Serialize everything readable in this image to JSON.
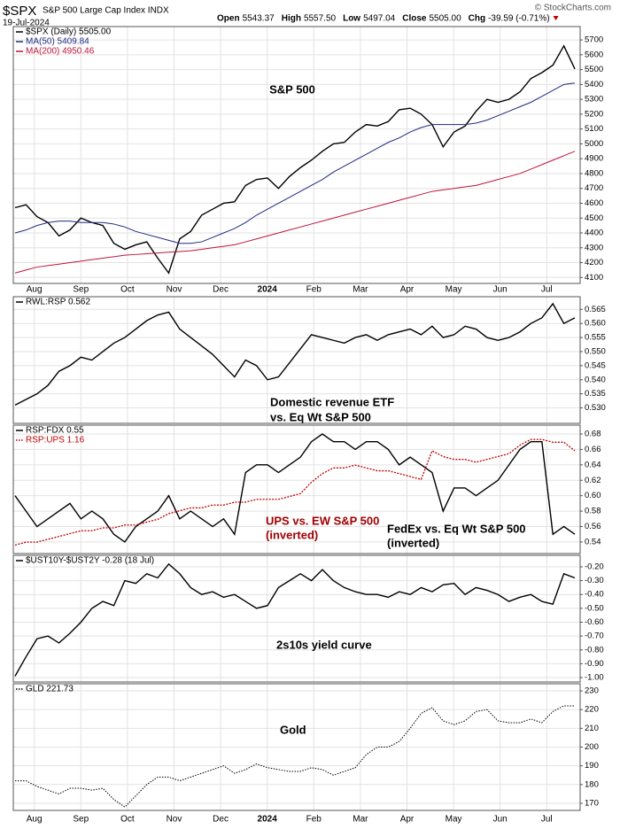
{
  "header": {
    "symbol": "$SPX",
    "name": "S&P 500 Large Cap Index INDX",
    "date": "19-Jul-2024",
    "stats": [
      {
        "label": "Open",
        "value": "5543.37"
      },
      {
        "label": "High",
        "value": "5557.50"
      },
      {
        "label": "Low",
        "value": "5497.04"
      },
      {
        "label": "Close",
        "value": "5505.00"
      },
      {
        "label": "Chg",
        "value": "-39.59 (-0.71%)"
      }
    ],
    "copyright": "© StockCharts.com"
  },
  "x_labels": [
    "Aug",
    "Sep",
    "Oct",
    "Nov",
    "Dec",
    "2024",
    "Feb",
    "Mar",
    "Apr",
    "May",
    "Jun",
    "Jul"
  ],
  "chart_data": [
    {
      "type": "line",
      "ylim": [
        4060,
        5790
      ],
      "yticks": [
        4100,
        4200,
        4300,
        4400,
        4500,
        4600,
        4700,
        4800,
        4900,
        5000,
        5100,
        5200,
        5300,
        5400,
        5500,
        5600,
        5700
      ],
      "grid": true,
      "series": [
        {
          "name": "$SPX (Daily) 5505.00",
          "color": "#000000",
          "style": "line",
          "values": [
            4570,
            4590,
            4510,
            4470,
            4380,
            4420,
            4500,
            4470,
            4450,
            4330,
            4290,
            4320,
            4340,
            4230,
            4130,
            4360,
            4410,
            4520,
            4560,
            4600,
            4610,
            4720,
            4760,
            4770,
            4700,
            4780,
            4840,
            4890,
            4950,
            5000,
            5010,
            5080,
            5130,
            5120,
            5150,
            5230,
            5240,
            5200,
            5130,
            4980,
            5080,
            5120,
            5220,
            5300,
            5280,
            5300,
            5350,
            5440,
            5480,
            5530,
            5660,
            5505
          ]
        },
        {
          "name": "MA(50) 5409.84",
          "color": "#1f2a80",
          "style": "line",
          "values": [
            4400,
            4420,
            4450,
            4470,
            4480,
            4480,
            4470,
            4470,
            4470,
            4460,
            4440,
            4410,
            4390,
            4370,
            4350,
            4330,
            4330,
            4340,
            4370,
            4400,
            4430,
            4470,
            4520,
            4560,
            4600,
            4640,
            4680,
            4720,
            4760,
            4810,
            4850,
            4890,
            4930,
            4970,
            5010,
            5040,
            5080,
            5110,
            5130,
            5130,
            5130,
            5130,
            5140,
            5160,
            5190,
            5220,
            5250,
            5280,
            5320,
            5360,
            5400,
            5410
          ]
        },
        {
          "name": "MA(200) 4950.46",
          "color": "#c0143c",
          "style": "line",
          "values": [
            4130,
            4150,
            4170,
            4180,
            4190,
            4200,
            4210,
            4220,
            4230,
            4240,
            4250,
            4255,
            4260,
            4265,
            4270,
            4275,
            4280,
            4290,
            4300,
            4310,
            4320,
            4340,
            4360,
            4380,
            4400,
            4420,
            4440,
            4460,
            4480,
            4500,
            4520,
            4540,
            4560,
            4580,
            4600,
            4620,
            4640,
            4660,
            4680,
            4690,
            4700,
            4710,
            4720,
            4740,
            4760,
            4780,
            4800,
            4830,
            4860,
            4890,
            4920,
            4950
          ]
        }
      ],
      "annotations": [
        {
          "text": "S&P 500",
          "color": "#000000"
        }
      ]
    },
    {
      "type": "line",
      "ylim": [
        0.5245,
        0.5695
      ],
      "yticks": [
        {
          "value": 0.53,
          "label": "0.530"
        },
        0.535,
        {
          "value": 0.54,
          "label": "0.540"
        },
        0.545,
        {
          "value": 0.55,
          "label": "0.550"
        },
        0.555,
        {
          "value": 0.56,
          "label": "0.560"
        },
        0.565
      ],
      "grid": true,
      "series": [
        {
          "name": "RWL:RSP 0.562",
          "color": "#000000",
          "style": "line",
          "values": [
            0.531,
            0.533,
            0.535,
            0.538,
            0.543,
            0.545,
            0.548,
            0.547,
            0.55,
            0.553,
            0.555,
            0.558,
            0.561,
            0.563,
            0.564,
            0.558,
            0.555,
            0.552,
            0.549,
            0.545,
            0.541,
            0.547,
            0.545,
            0.54,
            0.541,
            0.546,
            0.551,
            0.556,
            0.555,
            0.554,
            0.553,
            0.555,
            0.556,
            0.554,
            0.556,
            0.557,
            0.558,
            0.556,
            0.559,
            0.555,
            0.556,
            0.559,
            0.558,
            0.555,
            0.554,
            0.555,
            0.557,
            0.56,
            0.562,
            0.567,
            0.56,
            0.562
          ]
        }
      ],
      "annotations": [
        {
          "text": "Domestic revenue ETF",
          "color": "#000000"
        },
        {
          "text": "vs. Eq Wt S&P 500",
          "color": "#000000"
        }
      ]
    },
    {
      "type": "line",
      "ylim": [
        0.525,
        0.6915
      ],
      "yticks": [
        0.54,
        0.56,
        0.58,
        {
          "value": 0.6,
          "label": "0.60"
        },
        0.62,
        0.64,
        0.66,
        0.68
      ],
      "y2lim": [
        0.8,
        1.25
      ],
      "grid": true,
      "series": [
        {
          "name": "RSP:FDX 0.55",
          "color": "#000000",
          "style": "line",
          "values": [
            0.6,
            0.58,
            0.56,
            0.57,
            0.58,
            0.59,
            0.57,
            0.58,
            0.57,
            0.55,
            0.54,
            0.56,
            0.57,
            0.58,
            0.6,
            0.57,
            0.58,
            0.57,
            0.56,
            0.57,
            0.55,
            0.63,
            0.64,
            0.64,
            0.63,
            0.64,
            0.65,
            0.67,
            0.68,
            0.67,
            0.67,
            0.66,
            0.67,
            0.67,
            0.66,
            0.64,
            0.65,
            0.64,
            0.63,
            0.58,
            0.61,
            0.61,
            0.6,
            0.61,
            0.62,
            0.64,
            0.66,
            0.67,
            0.67,
            0.55,
            0.56,
            0.55
          ]
        },
        {
          "name": "RSP:UPS 1.16",
          "color": "#c00000",
          "style": "dotted",
          "axis": "y2",
          "values": [
            0.83,
            0.84,
            0.84,
            0.85,
            0.86,
            0.87,
            0.88,
            0.88,
            0.89,
            0.89,
            0.9,
            0.9,
            0.91,
            0.92,
            0.94,
            0.95,
            0.96,
            0.96,
            0.97,
            0.97,
            0.98,
            0.98,
            0.99,
            0.99,
            0.99,
            1.0,
            1.01,
            1.05,
            1.08,
            1.1,
            1.1,
            1.11,
            1.1,
            1.09,
            1.09,
            1.08,
            1.07,
            1.06,
            1.16,
            1.14,
            1.13,
            1.13,
            1.12,
            1.13,
            1.14,
            1.15,
            1.18,
            1.2,
            1.2,
            1.19,
            1.19,
            1.16
          ]
        }
      ],
      "annotations": [
        {
          "text": "UPS vs. EW S&P 500",
          "color": "#a00000"
        },
        {
          "text": "(inverted)",
          "color": "#a00000"
        },
        {
          "text": "FedEx vs. Eq Wt S&P 500",
          "color": "#000000"
        },
        {
          "text": "(inverted)",
          "color": "#000000"
        }
      ]
    },
    {
      "type": "line",
      "ylim": [
        -1.032,
        -0.117
      ],
      "yticks": [
        {
          "value": -1,
          "label": "-1.00"
        },
        {
          "value": -0.9,
          "label": "-0.90"
        },
        {
          "value": -0.8,
          "label": "-0.80"
        },
        {
          "value": -0.7,
          "label": "-0.70"
        },
        {
          "value": -0.6,
          "label": "-0.60"
        },
        {
          "value": -0.5,
          "label": "-0.50"
        },
        {
          "value": -0.4,
          "label": "-0.40"
        },
        {
          "value": -0.3,
          "label": "-0.30"
        },
        {
          "value": -0.2,
          "label": "-0.20"
        }
      ],
      "grid": true,
      "series": [
        {
          "name": "$UST10Y-$UST2Y -0.28 (18 Jul)",
          "color": "#000000",
          "style": "line",
          "values": [
            -0.99,
            -0.85,
            -0.72,
            -0.7,
            -0.75,
            -0.68,
            -0.6,
            -0.5,
            -0.45,
            -0.48,
            -0.3,
            -0.32,
            -0.25,
            -0.28,
            -0.18,
            -0.25,
            -0.35,
            -0.4,
            -0.38,
            -0.42,
            -0.4,
            -0.45,
            -0.5,
            -0.48,
            -0.35,
            -0.3,
            -0.25,
            -0.3,
            -0.22,
            -0.3,
            -0.35,
            -0.38,
            -0.4,
            -0.4,
            -0.42,
            -0.38,
            -0.4,
            -0.35,
            -0.38,
            -0.33,
            -0.32,
            -0.4,
            -0.35,
            -0.37,
            -0.4,
            -0.45,
            -0.42,
            -0.4,
            -0.45,
            -0.47,
            -0.25,
            -0.28
          ]
        }
      ],
      "annotations": [
        {
          "text": "2s10s yield curve",
          "color": "#000000"
        }
      ]
    },
    {
      "type": "line",
      "ylim": [
        166.2,
        233.8
      ],
      "yticks": [
        170,
        180,
        190,
        200,
        210,
        220,
        230
      ],
      "grid": true,
      "series": [
        {
          "name": "GLD 221.73",
          "color": "#000000",
          "style": "dots",
          "values": [
            182,
            182,
            179,
            177,
            175,
            178,
            178,
            177,
            178,
            172,
            168,
            174,
            180,
            184,
            184,
            182,
            184,
            186,
            188,
            190,
            186,
            188,
            191,
            189,
            188,
            187,
            187,
            189,
            188,
            185,
            187,
            189,
            196,
            200,
            200,
            203,
            210,
            218,
            221,
            214,
            212,
            214,
            219,
            220,
            214,
            213,
            213,
            215,
            213,
            219,
            222,
            222
          ]
        }
      ],
      "annotations": [
        {
          "text": "Gold",
          "color": "#000000"
        }
      ]
    }
  ]
}
